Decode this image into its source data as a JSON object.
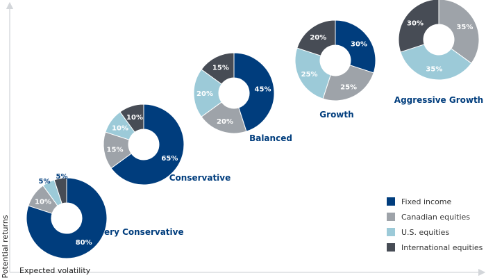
{
  "colors": {
    "fixed_income": "#003d7d",
    "canadian_equities": "#9ea3a9",
    "us_equities": "#9ccad8",
    "international_equities": "#474c55",
    "portfolio_label": "#003d7d",
    "axis": "#d3d6da",
    "axis_text": "#1a1a1a",
    "legend_text": "#333333"
  },
  "chart_data": {
    "type": "pie",
    "variant": "donut",
    "xlabel": "Expected volatility",
    "ylabel": "Potential returns",
    "legend_position": "bottom-right",
    "series_names": [
      "Fixed income",
      "Canadian equities",
      "U.S. equities",
      "International equities"
    ],
    "portfolios": [
      {
        "name": "Very Conservative",
        "values": [
          80,
          10,
          5,
          5
        ],
        "labels": [
          "80%",
          "10%",
          "5%",
          "5%"
        ]
      },
      {
        "name": "Conservative",
        "values": [
          65,
          15,
          10,
          10
        ],
        "labels": [
          "65%",
          "15%",
          "10%",
          "10%"
        ]
      },
      {
        "name": "Balanced",
        "values": [
          45,
          20,
          20,
          15
        ],
        "labels": [
          "45%",
          "20%",
          "20%",
          "15%"
        ]
      },
      {
        "name": "Growth",
        "values": [
          30,
          25,
          25,
          20
        ],
        "labels": [
          "30%",
          "25%",
          "25%",
          "20%"
        ]
      },
      {
        "name": "Aggressive Growth",
        "values": [
          0,
          35,
          35,
          30
        ],
        "labels": [
          "",
          "35%",
          "35%",
          "30%"
        ]
      }
    ]
  }
}
